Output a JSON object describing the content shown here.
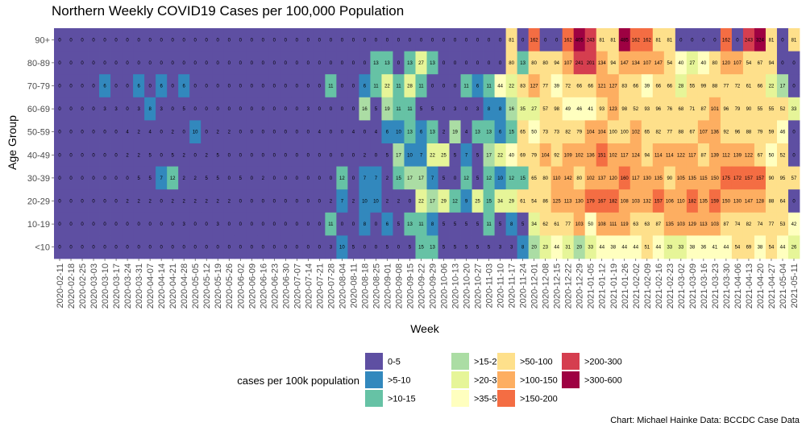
{
  "chart_data": {
    "type": "heatmap",
    "title": "Northern Weekly COVID19 Cases per 100,000 Population",
    "xlabel": "Week",
    "ylabel": "Age Group",
    "caption": "Chart: Michael Hainke Data: BCCDC Case Data",
    "weeks": [
      "2020-02-11",
      "2020-02-18",
      "2020-02-25",
      "2020-03-03",
      "2020-03-10",
      "2020-03-17",
      "2020-03-24",
      "2020-03-31",
      "2020-04-07",
      "2020-04-14",
      "2020-04-21",
      "2020-04-28",
      "2020-05-05",
      "2020-05-12",
      "2020-05-19",
      "2020-05-26",
      "2020-06-02",
      "2020-06-09",
      "2020-06-16",
      "2020-06-23",
      "2020-06-30",
      "2020-07-07",
      "2020-07-14",
      "2020-07-21",
      "2020-07-28",
      "2020-08-04",
      "2020-08-11",
      "2020-08-18",
      "2020-08-25",
      "2020-09-01",
      "2020-09-08",
      "2020-09-15",
      "2020-09-22",
      "2020-09-29",
      "2020-10-06",
      "2020-10-13",
      "2020-10-20",
      "2020-10-27",
      "2020-11-03",
      "2020-11-10",
      "2020-11-17",
      "2020-11-24",
      "2020-12-01",
      "2020-12-08",
      "2020-12-15",
      "2020-12-22",
      "2020-12-29",
      "2021-01-05",
      "2021-01-12",
      "2021-01-19",
      "2021-01-26",
      "2021-02-02",
      "2021-02-09",
      "2021-02-16",
      "2021-02-23",
      "2021-03-02",
      "2021-03-09",
      "2021-03-16",
      "2021-03-23",
      "2021-03-30",
      "2021-04-06",
      "2021-04-13",
      "2021-04-20",
      "2021-04-27",
      "2021-05-04",
      "2021-05-11"
    ],
    "x_tick_labels": [
      "2020-02-11",
      "2020-02-18",
      "2020-02-25",
      "2020-03-03",
      "2020-03-10",
      "2020-03-17",
      "2020-03-24",
      "2020-03-31",
      "2020-04-07",
      "2020-04-14",
      "2020-04-21",
      "2020-04-28",
      "2020-05-05",
      "2020-05-12",
      "2020-05-19",
      "2020-05-26",
      "2020-06-02",
      "2020-06-09",
      "2020-06-16",
      "2020-06-23",
      "2020-06-30",
      "2020-07-07",
      "2020-07-14",
      "2020-07-21",
      "2020-07-28",
      "2020-08-04",
      "2020-08-11",
      "2020-08-18",
      "2020-08-25",
      "2020-09-01",
      "2020-09-08",
      "2020-09-15",
      "2020-09-22",
      "2020-09-29",
      "2020-10-06",
      "2020-10-13",
      "2020-10-20",
      "2020-10-27",
      "2020-11-03",
      "2020-11-10",
      "2020-11-17",
      "2020-11-24",
      "2020-12-01",
      "2020-12-08",
      "2020-12-15",
      "2020-12-22",
      "2020-12-29",
      "2021-01-05",
      "2021-01-12",
      "2021-01-19",
      "2021-01-26",
      "2021-02-02",
      "2021-02-09",
      "2021-02-16",
      "2021-02-23",
      "2021-03-02",
      "2021-03-09",
      "2021-03-16",
      "2021-03-23",
      "2021-03-30",
      "2021-04-06",
      "2021-04-13",
      "2021-04-20",
      "2021-04-27",
      "2021-05-04",
      "2021-05-11"
    ],
    "age_groups": [
      "90+",
      "80-89",
      "70-79",
      "60-69",
      "50-59",
      "40-49",
      "30-39",
      "20-29",
      "10-19",
      "<10"
    ],
    "values": [
      [
        0,
        0,
        0,
        0,
        0,
        0,
        0,
        0,
        0,
        0,
        0,
        0,
        0,
        0,
        0,
        0,
        0,
        0,
        0,
        0,
        0,
        0,
        0,
        0,
        0,
        0,
        0,
        0,
        0,
        0,
        0,
        0,
        0,
        0,
        0,
        0,
        0,
        0,
        0,
        0,
        81,
        0,
        162,
        0,
        0,
        162,
        405,
        243,
        81,
        81,
        485,
        162,
        162,
        81,
        81,
        0,
        0,
        0,
        0,
        162,
        0,
        243,
        324,
        81,
        0,
        81
      ],
      [
        0,
        0,
        0,
        0,
        0,
        0,
        0,
        0,
        0,
        0,
        0,
        0,
        0,
        0,
        0,
        0,
        0,
        0,
        0,
        0,
        0,
        0,
        0,
        0,
        0,
        0,
        0,
        0,
        13,
        13,
        0,
        13,
        27,
        13,
        0,
        0,
        0,
        0,
        0,
        0,
        80,
        13,
        80,
        80,
        94,
        107,
        241,
        201,
        134,
        94,
        147,
        134,
        107,
        147,
        54,
        40,
        27,
        40,
        80,
        120,
        107,
        54,
        67,
        94,
        0,
        0
      ],
      [
        0,
        0,
        0,
        0,
        6,
        0,
        0,
        6,
        0,
        6,
        0,
        6,
        0,
        0,
        0,
        0,
        0,
        0,
        0,
        0,
        0,
        0,
        0,
        0,
        11,
        0,
        0,
        6,
        11,
        22,
        11,
        28,
        11,
        0,
        0,
        0,
        11,
        6,
        11,
        44,
        22,
        83,
        127,
        77,
        39,
        72,
        66,
        66,
        121,
        127,
        83,
        66,
        39,
        66,
        66,
        28,
        55,
        99,
        88,
        77,
        72,
        61,
        66,
        22,
        17,
        0
      ],
      [
        0,
        0,
        0,
        0,
        3,
        3,
        0,
        3,
        8,
        3,
        0,
        5,
        0,
        0,
        0,
        0,
        0,
        0,
        0,
        0,
        0,
        0,
        3,
        0,
        0,
        0,
        0,
        16,
        5,
        19,
        11,
        11,
        5,
        5,
        0,
        3,
        0,
        3,
        8,
        8,
        16,
        35,
        27,
        57,
        98,
        49,
        46,
        41,
        93,
        123,
        98,
        52,
        93,
        96,
        76,
        68,
        71,
        87,
        101,
        96,
        79,
        90,
        55,
        55,
        52,
        33
      ],
      [
        0,
        0,
        0,
        0,
        0,
        0,
        4,
        2,
        4,
        0,
        2,
        0,
        10,
        0,
        2,
        2,
        0,
        0,
        0,
        0,
        0,
        0,
        0,
        4,
        0,
        0,
        4,
        0,
        4,
        6,
        10,
        13,
        6,
        13,
        2,
        19,
        4,
        13,
        13,
        6,
        15,
        65,
        50,
        73,
        73,
        82,
        79,
        104,
        104,
        100,
        100,
        102,
        65,
        82,
        77,
        88,
        67,
        107,
        136,
        92,
        96,
        88,
        79,
        59,
        46,
        0
      ],
      [
        0,
        0,
        0,
        0,
        0,
        0,
        2,
        2,
        5,
        0,
        5,
        2,
        0,
        2,
        5,
        0,
        0,
        0,
        0,
        0,
        0,
        0,
        0,
        0,
        0,
        0,
        0,
        2,
        0,
        5,
        17,
        10,
        7,
        22,
        25,
        5,
        7,
        5,
        17,
        22,
        40,
        69,
        79,
        104,
        92,
        109,
        102,
        136,
        151,
        102,
        117,
        124,
        94,
        114,
        114,
        122,
        117,
        87,
        139,
        112,
        139,
        122,
        67,
        50,
        52,
        0
      ],
      [
        0,
        0,
        0,
        0,
        0,
        0,
        0,
        5,
        5,
        7,
        12,
        2,
        2,
        5,
        5,
        0,
        5,
        0,
        2,
        0,
        0,
        0,
        0,
        0,
        0,
        12,
        0,
        7,
        7,
        2,
        15,
        17,
        17,
        7,
        5,
        0,
        12,
        5,
        12,
        10,
        12,
        15,
        65,
        80,
        110,
        142,
        80,
        102,
        137,
        120,
        160,
        117,
        130,
        135,
        90,
        105,
        135,
        115,
        150,
        175,
        172,
        157,
        157,
        90,
        95,
        57
      ],
      [
        0,
        0,
        0,
        0,
        0,
        0,
        2,
        2,
        2,
        0,
        2,
        2,
        2,
        2,
        2,
        2,
        0,
        0,
        0,
        0,
        0,
        0,
        0,
        0,
        2,
        7,
        2,
        10,
        10,
        2,
        2,
        0,
        22,
        17,
        29,
        12,
        9,
        25,
        15,
        34,
        29,
        61,
        54,
        86,
        125,
        113,
        130,
        179,
        167,
        182,
        108,
        103,
        132,
        157,
        106,
        110,
        182,
        135,
        159,
        150,
        130,
        147,
        128,
        88,
        64,
        0
      ],
      [
        0,
        0,
        0,
        0,
        0,
        0,
        0,
        0,
        0,
        0,
        0,
        3,
        0,
        0,
        3,
        0,
        0,
        0,
        0,
        0,
        0,
        0,
        0,
        0,
        11,
        0,
        0,
        8,
        0,
        6,
        5,
        13,
        11,
        8,
        5,
        5,
        5,
        5,
        11,
        5,
        8,
        5,
        34,
        62,
        61,
        77,
        103,
        50,
        108,
        111,
        119,
        63,
        63,
        87,
        135,
        103,
        129,
        113,
        103,
        87,
        74,
        82,
        74,
        77,
        53,
        42
      ],
      [
        0,
        0,
        0,
        0,
        0,
        0,
        0,
        0,
        0,
        0,
        0,
        0,
        0,
        0,
        0,
        0,
        0,
        0,
        0,
        0,
        0,
        0,
        0,
        0,
        3,
        10,
        5,
        0,
        0,
        5,
        0,
        5,
        15,
        13,
        5,
        5,
        5,
        5,
        5,
        3,
        3,
        8,
        20,
        23,
        44,
        31,
        20,
        33,
        44,
        38,
        44,
        44,
        51,
        44,
        33,
        33,
        38,
        36,
        41,
        44,
        54,
        69,
        38,
        54,
        44,
        26
      ]
    ],
    "bins": [
      {
        "label": "0-5",
        "color": "#5E4FA2"
      },
      {
        "label": ">5-10",
        "color": "#3288BD"
      },
      {
        "label": ">10-15",
        "color": "#66C2A5"
      },
      {
        "label": ">15-20",
        "color": "#ABDDA4"
      },
      {
        "label": ">20-35",
        "color": "#E6F598"
      },
      {
        "label": ">35-50",
        "color": "#FFFFBF"
      },
      {
        "label": ">50-100",
        "color": "#FEE08B"
      },
      {
        "label": ">100-150",
        "color": "#FDAE61"
      },
      {
        "label": ">150-200",
        "color": "#F46D43"
      },
      {
        "label": ">200-300",
        "color": "#D53E4F"
      },
      {
        "label": ">300-600",
        "color": "#9E0142"
      }
    ],
    "bin_upper_bounds": [
      5,
      10,
      15,
      20,
      35,
      50,
      100,
      150,
      200,
      300,
      600
    ],
    "legend_title": "cases per 100k population",
    "legend_position": "bottom"
  }
}
